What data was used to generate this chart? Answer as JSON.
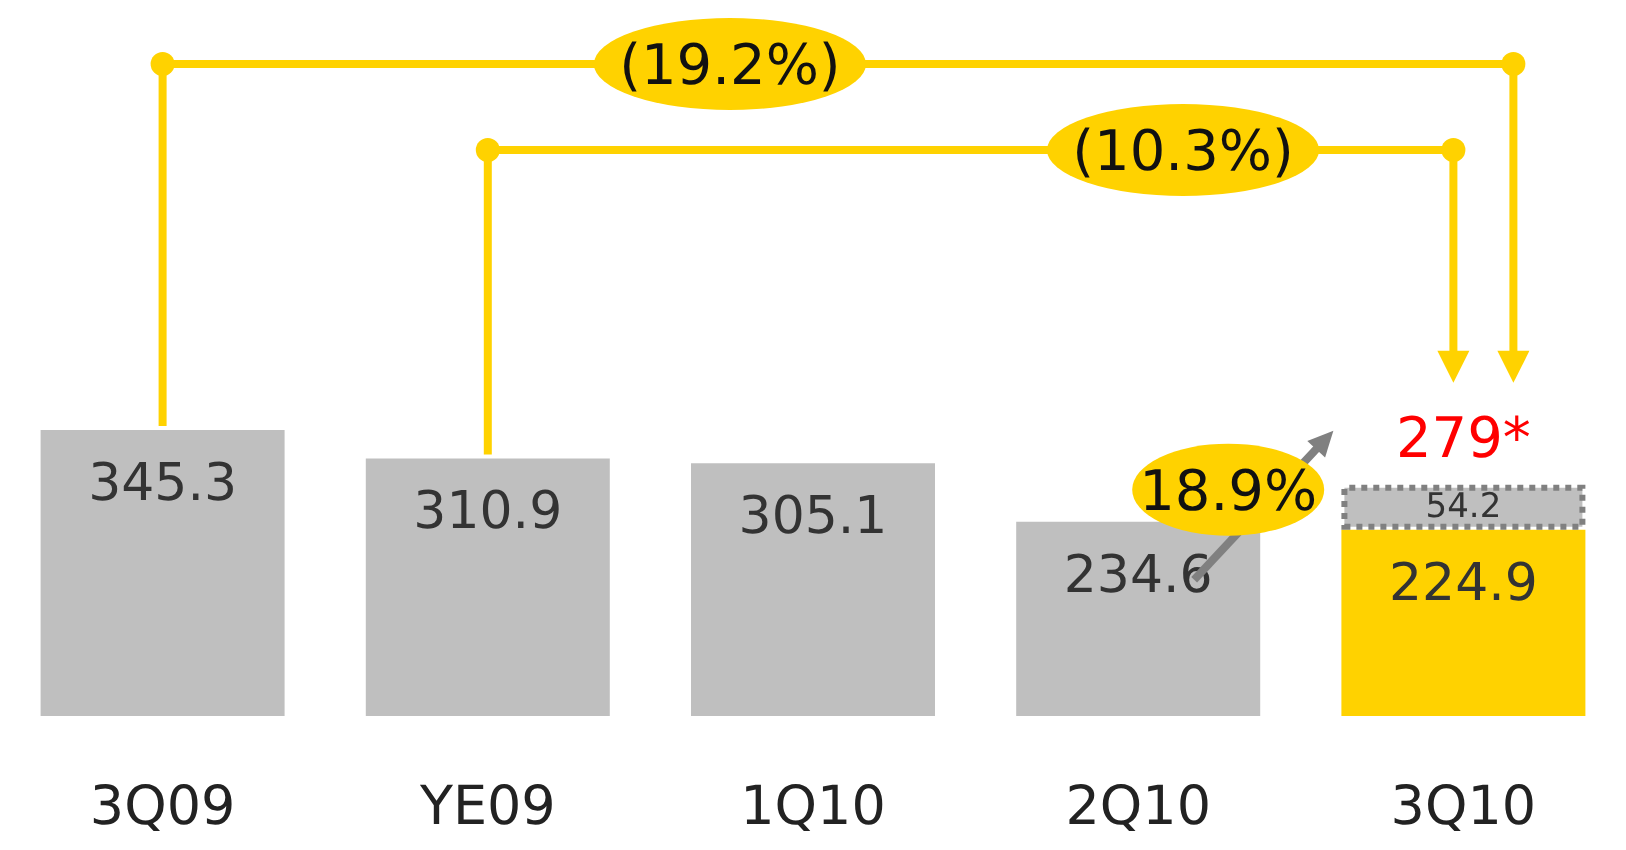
{
  "chart_data": {
    "type": "bar",
    "categories": [
      "3Q09",
      "YE09",
      "1Q10",
      "2Q10",
      "3Q10"
    ],
    "stacked": true,
    "data_labels": true,
    "series": [
      {
        "colors": [
          "#bfbfbf",
          "#bfbfbf",
          "#bfbfbf",
          "#bfbfbf",
          "#ffd200"
        ],
        "values": [
          345.3,
          310.9,
          305.1,
          234.6,
          224.9
        ]
      },
      {
        "color": "#bfbfbf",
        "line_style": "dotted",
        "values": [
          null,
          null,
          null,
          null,
          54.2
        ]
      }
    ],
    "totals": [
      null,
      null,
      null,
      null,
      "279*"
    ],
    "annotations": [
      "(19.2%)",
      "(10.3%)",
      "18.9%"
    ]
  }
}
